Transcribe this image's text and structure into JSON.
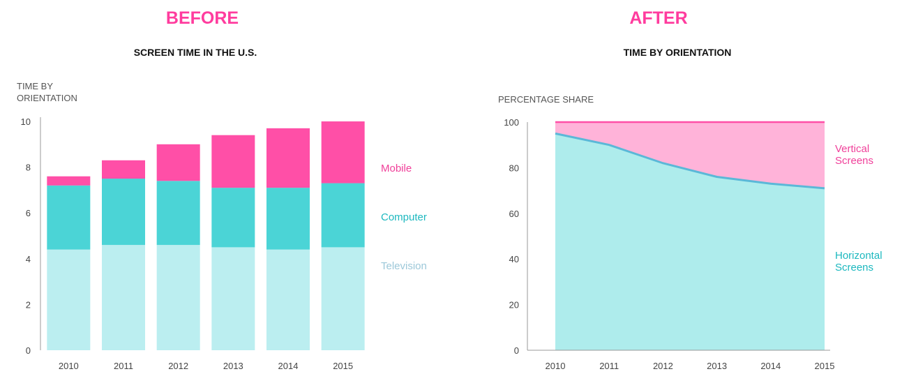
{
  "colors": {
    "heading": "#ff3c9e",
    "television": "#bbeef0",
    "computer": "#4bd4d6",
    "mobile": "#ff4fa7",
    "vertical_area": "#ffb3d9",
    "vertical_line": "#ff4fa7",
    "horizontal_area": "#aeecec",
    "horizontal_line": "#5bb8d8",
    "label_mobile": "#f0409a",
    "label_computer": "#1cb8bf",
    "label_television": "#9cc8d9",
    "axis": "#999999"
  },
  "before": {
    "heading": "BEFORE",
    "subtitle": "SCREEN TIME IN THE U.S.",
    "ylabel_line1": "TIME BY",
    "ylabel_line2": "ORIENTATION"
  },
  "after": {
    "heading": "AFTER",
    "subtitle": "TIME BY ORIENTATION",
    "ylabel": "PERCENTAGE SHARE"
  },
  "chart_data": [
    {
      "type": "bar",
      "stacked": true,
      "title": "SCREEN TIME IN THE U.S.",
      "ylabel": "TIME BY ORIENTATION",
      "categories": [
        "2010",
        "2011",
        "2012",
        "2013",
        "2014",
        "2015"
      ],
      "ylim": [
        0,
        10
      ],
      "yticks": [
        "0",
        "2",
        "4",
        "6",
        "8",
        "10"
      ],
      "series": [
        {
          "name": "Television",
          "values": [
            4.4,
            4.6,
            4.6,
            4.5,
            4.4,
            4.5
          ]
        },
        {
          "name": "Computer",
          "values": [
            2.8,
            2.9,
            2.8,
            2.6,
            2.7,
            2.8
          ]
        },
        {
          "name": "Mobile",
          "values": [
            0.4,
            0.8,
            1.6,
            2.3,
            2.6,
            2.7
          ]
        }
      ]
    },
    {
      "type": "area",
      "stacked": true,
      "title": "TIME BY ORIENTATION",
      "ylabel": "PERCENTAGE SHARE",
      "x": [
        "2010",
        "2011",
        "2012",
        "2013",
        "2014",
        "2015"
      ],
      "ylim": [
        0,
        100
      ],
      "yticks": [
        "0",
        "20",
        "40",
        "60",
        "80",
        "100"
      ],
      "series": [
        {
          "name": "Horizontal Screens",
          "label_lines": [
            "Horizontal",
            "Screens"
          ],
          "values": [
            95,
            90,
            82,
            76,
            73,
            71
          ]
        },
        {
          "name": "Vertical Screens",
          "label_lines": [
            "Vertical",
            "Screens"
          ],
          "values": [
            5,
            10,
            18,
            24,
            27,
            29
          ]
        }
      ]
    }
  ]
}
